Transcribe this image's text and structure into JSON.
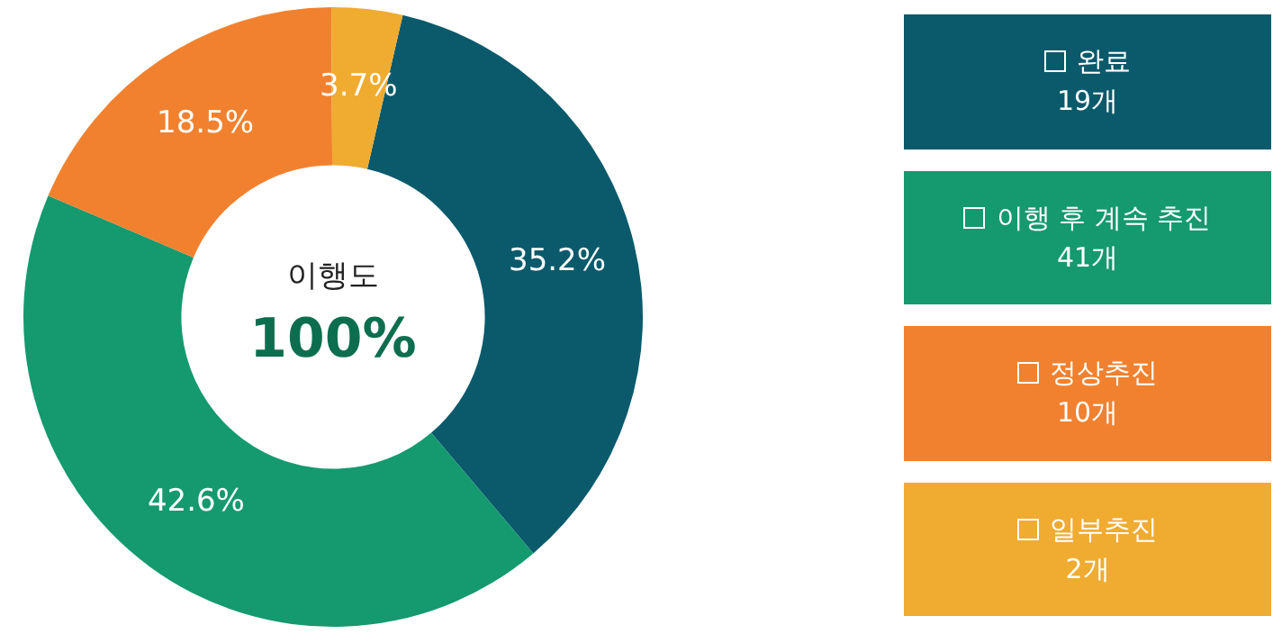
{
  "chart_data": {
    "type": "donut",
    "title": "이행도",
    "subtitle": "100%",
    "categories": [
      "완료",
      "이행 후 계속 추진",
      "정상추진",
      "일부추진"
    ],
    "values": [
      35.2,
      42.6,
      18.5,
      3.7
    ],
    "value_labels": [
      "35.2%",
      "42.6%",
      "18.5%",
      "3.7%"
    ],
    "colors": [
      "#0a5a6b",
      "#15996f",
      "#f1812f",
      "#f0ab31"
    ],
    "annotations": [
      "19개",
      "41개",
      "10개",
      "2개"
    ],
    "legend": "right"
  }
}
